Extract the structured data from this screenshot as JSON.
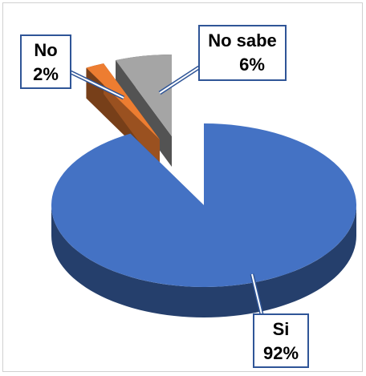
{
  "chart_data": {
    "type": "pie",
    "style": "3d-exploded",
    "slices": [
      {
        "label": "Si",
        "value": 92,
        "display": "92%",
        "color": "#4472C4"
      },
      {
        "label": "No",
        "value": 2,
        "display": "2%",
        "color": "#ED7D31"
      },
      {
        "label": "No sabe",
        "value": 6,
        "display": "6%",
        "color": "#A5A5A5"
      }
    ],
    "legend": "none",
    "title": ""
  }
}
